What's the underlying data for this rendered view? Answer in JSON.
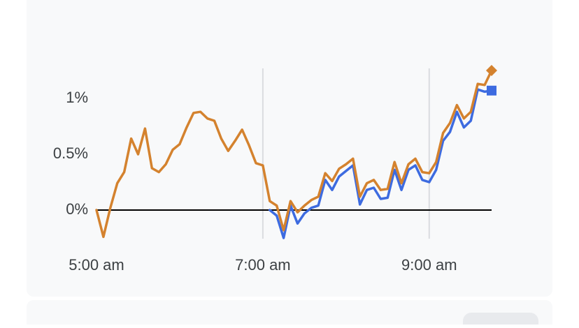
{
  "chart_data": {
    "type": "line",
    "x": [
      300,
      305,
      310,
      315,
      320,
      325,
      330,
      335,
      340,
      345,
      350,
      355,
      360,
      365,
      370,
      375,
      380,
      385,
      390,
      395,
      400,
      405,
      410,
      415,
      420,
      425,
      430,
      435,
      440,
      445,
      450,
      455,
      460,
      465,
      470,
      475,
      480,
      485,
      490,
      495,
      500,
      505,
      510,
      515,
      520,
      525,
      530,
      535,
      540,
      545,
      550,
      555,
      560,
      565,
      570,
      575,
      580,
      585
    ],
    "series": [
      {
        "color": "#3d6be0",
        "marker": "square",
        "values": [
          null,
          null,
          null,
          null,
          null,
          null,
          null,
          null,
          null,
          null,
          null,
          null,
          null,
          null,
          null,
          null,
          null,
          null,
          null,
          null,
          null,
          null,
          null,
          null,
          null,
          0.0,
          -0.05,
          -0.25,
          0.04,
          -0.12,
          -0.03,
          0.02,
          0.04,
          0.27,
          0.18,
          0.3,
          0.35,
          0.4,
          0.05,
          0.18,
          0.2,
          0.1,
          0.11,
          0.36,
          0.18,
          0.36,
          0.4,
          0.27,
          0.25,
          0.36,
          0.62,
          0.7,
          0.88,
          0.74,
          0.8,
          1.08,
          1.06,
          1.07
        ]
      },
      {
        "color": "#d4822e",
        "marker": "diamond",
        "values": [
          0.0,
          -0.24,
          0.02,
          0.24,
          0.34,
          0.64,
          0.5,
          0.73,
          0.375,
          0.34,
          0.41,
          0.54,
          0.59,
          0.74,
          0.87,
          0.88,
          0.82,
          0.8,
          0.64,
          0.53,
          0.62,
          0.72,
          0.58,
          0.42,
          0.4,
          0.08,
          0.04,
          -0.18,
          0.08,
          -0.02,
          0.04,
          0.09,
          0.12,
          0.33,
          0.26,
          0.37,
          0.41,
          0.46,
          0.12,
          0.24,
          0.27,
          0.18,
          0.19,
          0.43,
          0.24,
          0.41,
          0.46,
          0.34,
          0.33,
          0.43,
          0.69,
          0.78,
          0.94,
          0.82,
          0.88,
          1.13,
          1.12,
          1.25
        ]
      }
    ],
    "xlim": [
      300,
      585
    ],
    "xticks": [
      {
        "value": 300,
        "label": "5:00 am"
      },
      {
        "value": 420,
        "label": "7:00 am"
      },
      {
        "value": 540,
        "label": "9:00 am"
      }
    ],
    "ylim": [
      -0.3,
      1.3
    ],
    "yticks": [
      {
        "value": 0,
        "label": "0%"
      },
      {
        "value": 0.5,
        "label": "0.5%"
      },
      {
        "value": 1,
        "label": "1%"
      }
    ],
    "reference_line": 0,
    "grid": "x"
  }
}
